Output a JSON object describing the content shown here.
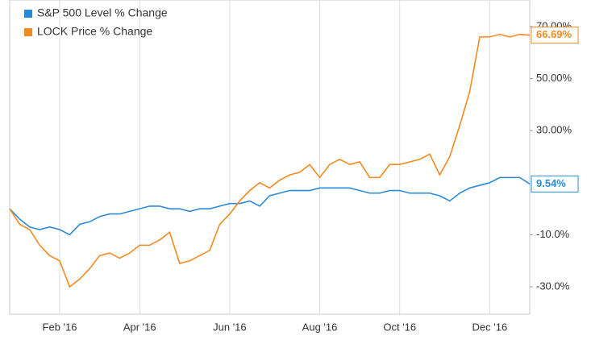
{
  "chart_data": {
    "type": "line",
    "categories": [
      null,
      null,
      null,
      null,
      null,
      "Feb '16",
      null,
      null,
      null,
      null,
      null,
      null,
      null,
      "Apr '16",
      null,
      null,
      null,
      null,
      null,
      null,
      null,
      null,
      "Jun '16",
      null,
      null,
      null,
      null,
      null,
      null,
      null,
      null,
      "Aug '16",
      null,
      null,
      null,
      null,
      null,
      null,
      null,
      "Oct '16",
      null,
      null,
      null,
      null,
      null,
      null,
      null,
      null,
      "Dec '16",
      null,
      null,
      null,
      null
    ],
    "series": [
      {
        "name": "S&P 500 Level % Change",
        "color": "#2b8ad8",
        "end_label": "9.54%",
        "values": [
          0,
          -4,
          -7,
          -8,
          -7,
          -8,
          -10,
          -6,
          -5,
          -3,
          -2,
          -2,
          -1,
          0,
          1,
          1,
          0,
          0,
          -1,
          0,
          0,
          1,
          2,
          2,
          3,
          1,
          5,
          6,
          7,
          7,
          7,
          8,
          8,
          8,
          8,
          7,
          6,
          6,
          7,
          7,
          6,
          6,
          6,
          5,
          3,
          6,
          8,
          9,
          10,
          12,
          12,
          12,
          9.54
        ]
      },
      {
        "name": "LOCK Price % Change",
        "color": "#f5891f",
        "end_label": "66.69%",
        "values": [
          0,
          -6,
          -8,
          -14,
          -18,
          -20,
          -30,
          -27,
          -23,
          -18,
          -17,
          -19,
          -17,
          -14,
          -14,
          -12,
          -9,
          -21,
          -20,
          -18,
          -16,
          -6,
          -2,
          3,
          7,
          10,
          8,
          11,
          13,
          14,
          17,
          12,
          17,
          19,
          17,
          18,
          12,
          12,
          17,
          17,
          18,
          19,
          21,
          13,
          20,
          32,
          45,
          66,
          66,
          67,
          66,
          67,
          66.69
        ]
      }
    ],
    "ylim": [
      -40.5,
      80.2
    ],
    "yticks": [
      {
        "value": 70,
        "label": "70.00%"
      },
      {
        "value": 50,
        "label": "50.00%"
      },
      {
        "value": 30,
        "label": "30.00%"
      },
      {
        "value": -10,
        "label": "-10.0%"
      },
      {
        "value": -30,
        "label": "-30.0%"
      }
    ],
    "grid": true,
    "legend": "top-left"
  }
}
